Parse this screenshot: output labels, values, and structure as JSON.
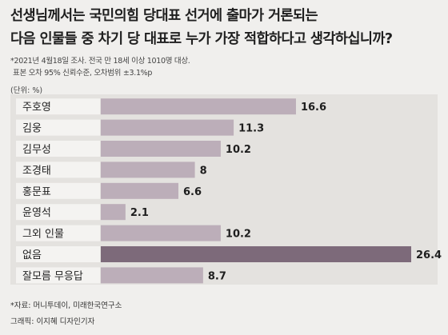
{
  "header": {
    "title_line1": "선생님께서는 국민의힘 당대표 선거에 출마가 거론되는",
    "title_line2": "다음 인물들 중 차기 당 대표로 누가 가장 적합하다고 생각하십니까?",
    "note_line1": "*2021년 4월18일 조사. 전국 만 18세 이상 1010명 대상.",
    "note_line2": "표본 오차 95% 신뢰수준, 오차범위 ±3.1%p",
    "unit": "(단위: %)"
  },
  "footer": {
    "source": "*자료: 머니투데이, 미래한국연구소",
    "credit": "그래픽: 이지혜 디자인기자"
  },
  "colors": {
    "bar": "#bcaeb9",
    "highlight_bar": "#7d6a7a",
    "label_bg": "#f4f3f1",
    "panel": "#e4e2df"
  },
  "chart_data": {
    "type": "bar",
    "orientation": "horizontal",
    "categories": [
      "주호영",
      "김웅",
      "김무성",
      "조경태",
      "홍문표",
      "윤영석",
      "그외 인물",
      "없음",
      "잘모름 무응답"
    ],
    "values": [
      16.6,
      11.3,
      10.2,
      8,
      6.6,
      2.1,
      10.2,
      26.4,
      8.7
    ],
    "value_labels": [
      "16.6",
      "11.3",
      "10.2",
      "8",
      "6.6",
      "2.1",
      "10.2",
      "26.4",
      "8.7"
    ],
    "highlight_index": 7,
    "xlim": [
      0,
      26.4
    ],
    "unit": "%"
  }
}
